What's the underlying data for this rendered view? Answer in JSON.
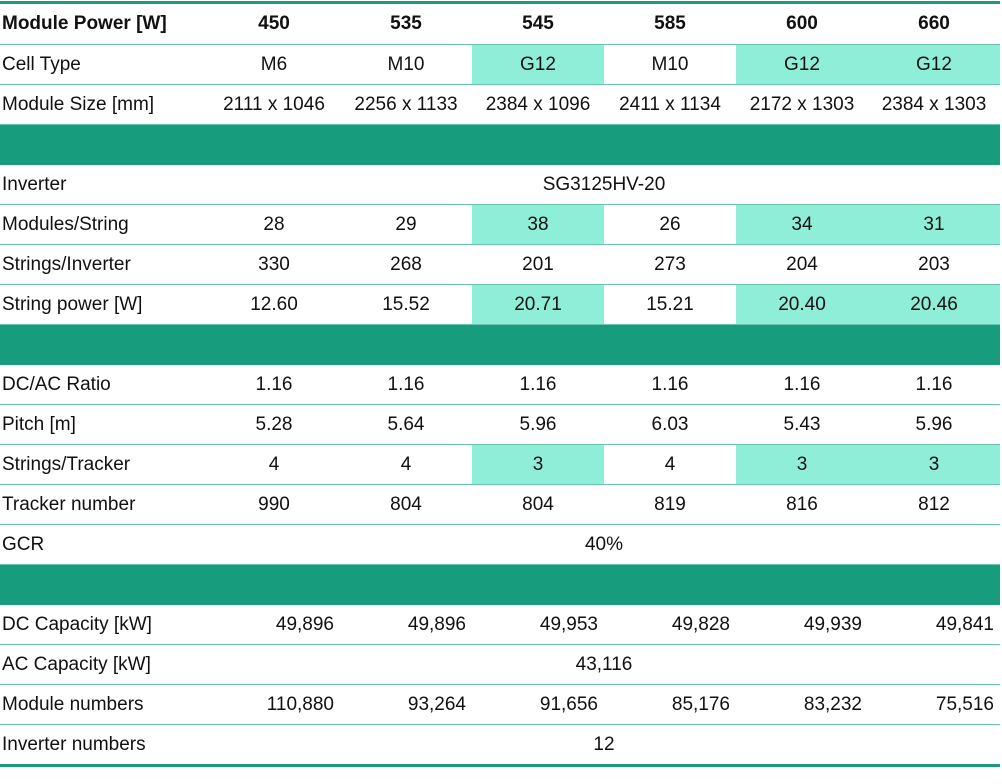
{
  "colors": {
    "band": "#189c7e",
    "highlight": "#8eeed8",
    "rule": "#69c4ad"
  },
  "rows": [
    {
      "type": "head",
      "label": "Module Power [W]",
      "values": [
        "450",
        "535",
        "545",
        "585",
        "600",
        "660"
      ]
    },
    {
      "label": "Cell Type",
      "values": [
        "M6",
        "M10",
        "G12",
        "M10",
        "G12",
        "G12"
      ],
      "highlight": [
        2,
        4,
        5
      ]
    },
    {
      "label": "Module Size [mm]",
      "values": [
        "2111 x 1046",
        "2256 x 1133",
        "2384 x 1096",
        "2411 x 1134",
        "2172 x 1303",
        "2384 x 1303"
      ]
    },
    {
      "type": "band"
    },
    {
      "label": "Inverter",
      "merged": "SG3125HV-20"
    },
    {
      "label": "Modules/String",
      "values": [
        "28",
        "29",
        "38",
        "26",
        "34",
        "31"
      ],
      "highlight": [
        2,
        4,
        5
      ]
    },
    {
      "label": "Strings/Inverter",
      "values": [
        "330",
        "268",
        "201",
        "273",
        "204",
        "203"
      ]
    },
    {
      "label": "String power [W]",
      "values": [
        "12.60",
        "15.52",
        "20.71",
        "15.21",
        "20.40",
        "20.46"
      ],
      "highlight": [
        2,
        4,
        5
      ]
    },
    {
      "type": "band"
    },
    {
      "label": "DC/AC Ratio",
      "values": [
        "1.16",
        "1.16",
        "1.16",
        "1.16",
        "1.16",
        "1.16"
      ]
    },
    {
      "label": "Pitch [m]",
      "values": [
        "5.28",
        "5.64",
        "5.96",
        "6.03",
        "5.43",
        "5.96"
      ]
    },
    {
      "label": "Strings/Tracker",
      "values": [
        "4",
        "4",
        "3",
        "4",
        "3",
        "3"
      ],
      "highlight": [
        2,
        4,
        5
      ]
    },
    {
      "label": "Tracker number",
      "values": [
        "990",
        "804",
        "804",
        "819",
        "816",
        "812"
      ]
    },
    {
      "label": "GCR",
      "merged": "40%"
    },
    {
      "type": "band"
    },
    {
      "label": "DC Capacity [kW]",
      "values": [
        "49,896",
        "49,896",
        "49,953",
        "49,828",
        "49,939",
        "49,841"
      ],
      "align": "right"
    },
    {
      "label": "AC Capacity [kW]",
      "merged": "43,116"
    },
    {
      "label": "Module numbers",
      "values": [
        "110,880",
        "93,264",
        "91,656",
        "85,176",
        "83,232",
        "75,516"
      ],
      "align": "right"
    },
    {
      "label": "Inverter numbers",
      "merged": "12"
    }
  ]
}
